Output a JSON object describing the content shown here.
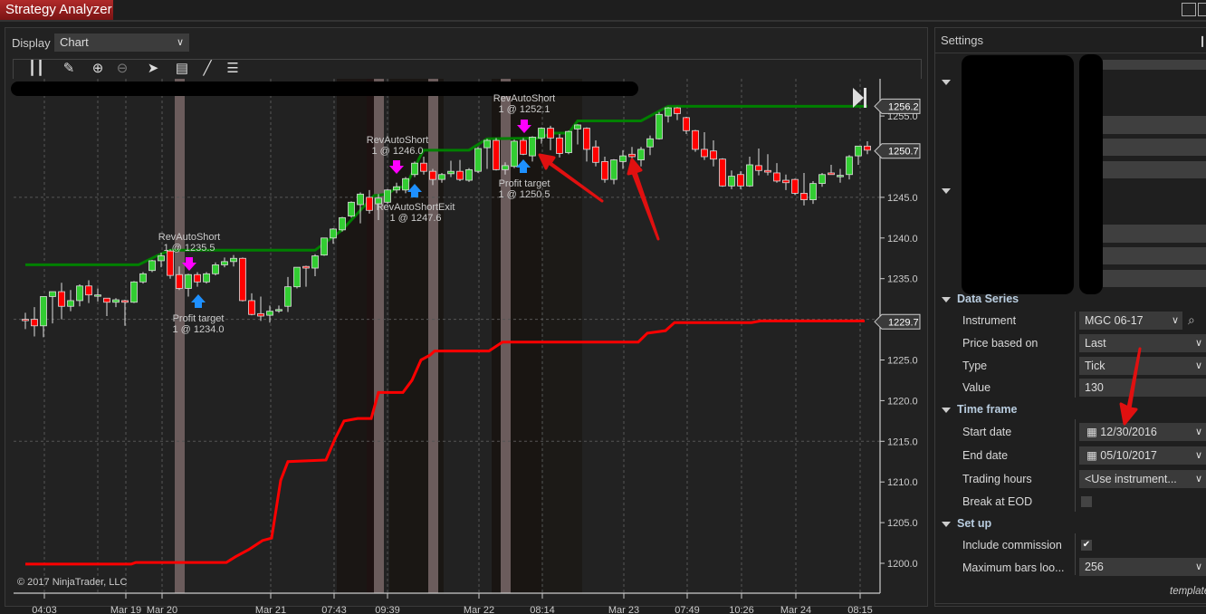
{
  "window": {
    "title": "Strategy Analyzer"
  },
  "display": {
    "label": "Display",
    "value": "Chart"
  },
  "toolbar": {
    "icons": [
      "bars-type-icon",
      "pencil-icon",
      "zoom-in-icon",
      "zoom-out-icon",
      "pointer-icon",
      "data-box-icon",
      "indicators-icon",
      "properties-list-icon"
    ]
  },
  "chart_data": {
    "type": "candlestick",
    "copyright": "© 2017 NinjaTrader, LLC",
    "ylim": [
      1196.5,
      1258.5
    ],
    "y_ticks": [
      "1255.0",
      "1245.0",
      "1240.0",
      "1235.0",
      "1225.0",
      "1220.0",
      "1215.0",
      "1210.0",
      "1205.0",
      "1200.0"
    ],
    "x_ticks": [
      "04:03",
      "Mar 19",
      "Mar 20",
      "Mar 21",
      "07:43",
      "09:39",
      "Mar 22",
      "08:14",
      "Mar 23",
      "07:49",
      "10:26",
      "Mar 24",
      "08:15"
    ],
    "price_markers": [
      "1256.2",
      "1250.7",
      "1229.7"
    ],
    "colors": {
      "up": "#32cd32",
      "down": "#ff0000",
      "upper_line": "#008000",
      "lower_line": "#ff0000",
      "background": "#222222",
      "session_band": "#6b5c5c"
    },
    "candles_ohlc": [
      [
        1230.0,
        1230.8,
        1228.8,
        1229.9
      ],
      [
        1230.0,
        1231.5,
        1227.9,
        1229.2
      ],
      [
        1229.2,
        1232.8,
        1227.8,
        1232.8
      ],
      [
        1232.8,
        1233.4,
        1229.5,
        1233.4
      ],
      [
        1233.4,
        1234.5,
        1230.0,
        1231.6
      ],
      [
        1231.6,
        1233.6,
        1231.0,
        1232.3
      ],
      [
        1232.3,
        1234.3,
        1231.6,
        1234.1
      ],
      [
        1234.1,
        1234.8,
        1232.0,
        1233.0
      ],
      [
        1233.0,
        1233.8,
        1232.2,
        1233.0
      ],
      [
        1232.6,
        1232.6,
        1230.4,
        1232.1
      ],
      [
        1232.1,
        1232.6,
        1231.5,
        1232.4
      ],
      [
        1232.3,
        1232.4,
        1229.2,
        1232.1
      ],
      [
        1232.1,
        1234.7,
        1232.0,
        1234.6
      ],
      [
        1234.6,
        1235.8,
        1234.4,
        1235.6
      ],
      [
        1236.0,
        1237.3,
        1235.8,
        1237.2
      ],
      [
        1237.2,
        1238.2,
        1236.4,
        1237.8
      ],
      [
        1238.4,
        1238.6,
        1235.0,
        1235.4
      ],
      [
        1235.5,
        1236.5,
        1233.6,
        1233.8
      ],
      [
        1233.8,
        1235.6,
        1232.8,
        1235.5
      ],
      [
        1235.5,
        1235.8,
        1234.0,
        1234.6
      ],
      [
        1234.6,
        1235.8,
        1234.4,
        1235.6
      ],
      [
        1235.6,
        1237.0,
        1235.4,
        1236.7
      ],
      [
        1236.7,
        1237.6,
        1236.4,
        1237.1
      ],
      [
        1237.1,
        1237.9,
        1236.5,
        1237.5
      ],
      [
        1237.5,
        1237.6,
        1232.2,
        1232.3
      ],
      [
        1232.3,
        1233.2,
        1230.5,
        1230.6
      ],
      [
        1230.7,
        1232.8,
        1229.8,
        1230.4
      ],
      [
        1230.5,
        1231.7,
        1229.6,
        1231.0
      ],
      [
        1231.2,
        1231.7,
        1230.8,
        1231.2
      ],
      [
        1231.6,
        1235.2,
        1230.9,
        1234.0
      ],
      [
        1234.0,
        1236.4,
        1233.8,
        1236.4
      ],
      [
        1236.5,
        1236.6,
        1234.0,
        1236.3
      ],
      [
        1236.3,
        1238.0,
        1235.3,
        1237.8
      ],
      [
        1237.9,
        1240.0,
        1237.8,
        1240.0
      ],
      [
        1240.0,
        1241.2,
        1239.3,
        1241.1
      ],
      [
        1241.0,
        1242.6,
        1240.8,
        1242.5
      ],
      [
        1242.7,
        1244.5,
        1242.5,
        1244.4
      ],
      [
        1244.1,
        1245.6,
        1241.8,
        1245.4
      ],
      [
        1245.0,
        1245.9,
        1243.0,
        1243.4
      ],
      [
        1244.2,
        1245.4,
        1242.2,
        1244.9
      ],
      [
        1244.4,
        1246.0,
        1244.2,
        1245.9
      ],
      [
        1245.9,
        1246.8,
        1245.5,
        1246.3
      ],
      [
        1245.9,
        1247.5,
        1245.5,
        1247.3
      ],
      [
        1247.8,
        1249.4,
        1247.5,
        1249.2
      ],
      [
        1249.2,
        1250.0,
        1247.8,
        1248.2
      ],
      [
        1248.2,
        1248.5,
        1246.5,
        1247.2
      ],
      [
        1247.2,
        1248.0,
        1246.8,
        1247.8
      ],
      [
        1247.9,
        1249.5,
        1247.5,
        1248.2
      ],
      [
        1248.2,
        1249.6,
        1247.0,
        1247.2
      ],
      [
        1247.1,
        1248.6,
        1246.9,
        1248.4
      ],
      [
        1248.2,
        1251.2,
        1248.0,
        1251.0
      ],
      [
        1251.1,
        1252.2,
        1248.5,
        1252.0
      ],
      [
        1252.0,
        1252.3,
        1248.3,
        1248.4
      ],
      [
        1248.4,
        1249.3,
        1247.8,
        1248.9
      ],
      [
        1248.8,
        1252.1,
        1248.6,
        1251.9
      ],
      [
        1252.0,
        1252.3,
        1250.2,
        1250.3
      ],
      [
        1250.1,
        1252.5,
        1249.4,
        1252.4
      ],
      [
        1252.3,
        1253.6,
        1251.6,
        1253.5
      ],
      [
        1253.5,
        1253.8,
        1250.8,
        1252.3
      ],
      [
        1252.3,
        1252.8,
        1249.9,
        1250.4
      ],
      [
        1250.5,
        1253.2,
        1250.3,
        1253.1
      ],
      [
        1253.4,
        1254.0,
        1251.5,
        1253.9
      ],
      [
        1253.5,
        1253.6,
        1249.4,
        1250.9
      ],
      [
        1251.2,
        1252.0,
        1248.8,
        1249.3
      ],
      [
        1249.4,
        1250.0,
        1246.8,
        1247.2
      ],
      [
        1247.2,
        1249.7,
        1246.6,
        1249.6
      ],
      [
        1249.4,
        1250.8,
        1248.5,
        1250.1
      ],
      [
        1250.3,
        1251.2,
        1249.6,
        1250.0
      ],
      [
        1249.6,
        1251.2,
        1248.8,
        1250.9
      ],
      [
        1251.2,
        1252.6,
        1250.2,
        1252.2
      ],
      [
        1252.2,
        1255.5,
        1252.1,
        1255.2
      ],
      [
        1255.0,
        1256.1,
        1254.2,
        1256.0
      ],
      [
        1256.0,
        1256.1,
        1254.5,
        1255.3
      ],
      [
        1254.8,
        1254.9,
        1252.8,
        1253.2
      ],
      [
        1253.2,
        1253.3,
        1250.6,
        1250.9
      ],
      [
        1250.9,
        1253.0,
        1249.6,
        1250.0
      ],
      [
        1250.7,
        1252.0,
        1248.8,
        1249.7
      ],
      [
        1249.7,
        1249.8,
        1246.3,
        1246.4
      ],
      [
        1246.4,
        1248.3,
        1246.0,
        1247.6
      ],
      [
        1247.8,
        1248.2,
        1246.0,
        1246.4
      ],
      [
        1246.4,
        1250.0,
        1246.3,
        1249.0
      ],
      [
        1248.9,
        1251.0,
        1247.7,
        1248.3
      ],
      [
        1248.3,
        1250.3,
        1247.7,
        1248.1
      ],
      [
        1248.0,
        1249.2,
        1246.8,
        1247.0
      ],
      [
        1247.1,
        1247.8,
        1245.9,
        1246.8
      ],
      [
        1247.2,
        1247.3,
        1245.3,
        1245.5
      ],
      [
        1245.5,
        1248.0,
        1244.0,
        1244.7
      ],
      [
        1244.7,
        1247.0,
        1244.2,
        1246.7
      ],
      [
        1246.7,
        1248.0,
        1246.3,
        1247.8
      ],
      [
        1248.0,
        1249.0,
        1247.8,
        1247.8
      ],
      [
        1247.7,
        1248.5,
        1246.8,
        1247.7
      ],
      [
        1247.8,
        1250.2,
        1247.2,
        1250.0
      ],
      [
        1250.1,
        1251.3,
        1249.0,
        1251.3
      ],
      [
        1251.3,
        1251.9,
        1250.3,
        1250.8
      ]
    ],
    "upper_line": [
      [
        0,
        1236.7
      ],
      [
        12.5,
        1236.7
      ],
      [
        14.5,
        1237.8
      ],
      [
        16,
        1238.5
      ],
      [
        32,
        1238.5
      ],
      [
        35,
        1241
      ],
      [
        37.5,
        1244
      ],
      [
        38.5,
        1245.2
      ],
      [
        40,
        1245.4
      ],
      [
        41,
        1246.2
      ],
      [
        42,
        1246.3
      ],
      [
        43.5,
        1249.8
      ],
      [
        44,
        1250.8
      ],
      [
        49,
        1250.8
      ],
      [
        51,
        1252.2
      ],
      [
        57,
        1252.3
      ],
      [
        58,
        1252.9
      ],
      [
        60,
        1252.9
      ],
      [
        61,
        1254.4
      ],
      [
        68,
        1254.4
      ],
      [
        71,
        1256.2
      ],
      [
        93,
        1256.2
      ]
    ],
    "lower_line": [
      [
        0,
        1199.9
      ],
      [
        11.7,
        1199.9
      ],
      [
        12.2,
        1200.1
      ],
      [
        22.2,
        1200.1
      ],
      [
        23.2,
        1200.8
      ],
      [
        24.7,
        1201.7
      ],
      [
        26.2,
        1202.8
      ],
      [
        27.2,
        1203.1
      ],
      [
        28.2,
        1210.2
      ],
      [
        29,
        1212.5
      ],
      [
        33.2,
        1212.7
      ],
      [
        34.2,
        1215.3
      ],
      [
        35.2,
        1217.5
      ],
      [
        36.7,
        1217.8
      ],
      [
        38.2,
        1217.8
      ],
      [
        39,
        1221.0
      ],
      [
        41.7,
        1221.0
      ],
      [
        42.7,
        1222.5
      ],
      [
        43.7,
        1225.0
      ],
      [
        44.7,
        1225.6
      ],
      [
        45.2,
        1226.1
      ],
      [
        51.2,
        1226.1
      ],
      [
        52.7,
        1227.2
      ],
      [
        67.7,
        1227.2
      ],
      [
        68.7,
        1228.3
      ],
      [
        70.7,
        1228.6
      ],
      [
        71.7,
        1229.6
      ],
      [
        80.2,
        1229.6
      ],
      [
        81.2,
        1229.8
      ],
      [
        92.7,
        1229.8
      ]
    ],
    "trades": [
      {
        "entry": "RevAutoShort",
        "entry_qty_price": "1 @ 1235.5",
        "exit": "Profit target",
        "exit_qty_price": "1 @ 1234.0"
      },
      {
        "entry": "RevAutoShort",
        "entry_qty_price": "1 @ 1246.0",
        "exit": "RevAutoShortExit",
        "exit_qty_price": "1 @ 1247.6"
      },
      {
        "entry": "RevAutoShort",
        "entry_qty_price": "1 @ 1252.1",
        "exit": "Profit target",
        "exit_qty_price": "1 @ 1250.5"
      }
    ]
  },
  "settings": {
    "title": "Settings",
    "sections": {
      "data_series": "Data Series",
      "time_frame": "Time frame",
      "set_up": "Set up"
    },
    "rows": {
      "instrument": {
        "label": "Instrument",
        "value": "MGC 06-17"
      },
      "price_based_on": {
        "label": "Price based on",
        "value": "Last"
      },
      "type": {
        "label": "Type",
        "value": "Tick"
      },
      "value": {
        "label": "Value",
        "value": "130"
      },
      "start_date": {
        "label": "Start date",
        "value": "12/30/2016"
      },
      "end_date": {
        "label": "End date",
        "value": "05/10/2017"
      },
      "trading_hours": {
        "label": "Trading hours",
        "value": "<Use instrument..."
      },
      "break_at_eod": {
        "label": "Break at EOD",
        "checked": false
      },
      "include_commission": {
        "label": "Include commission",
        "checked": true
      },
      "max_bars": {
        "label": "Maximum bars loo...",
        "value": "256"
      }
    },
    "template_link": "template"
  }
}
